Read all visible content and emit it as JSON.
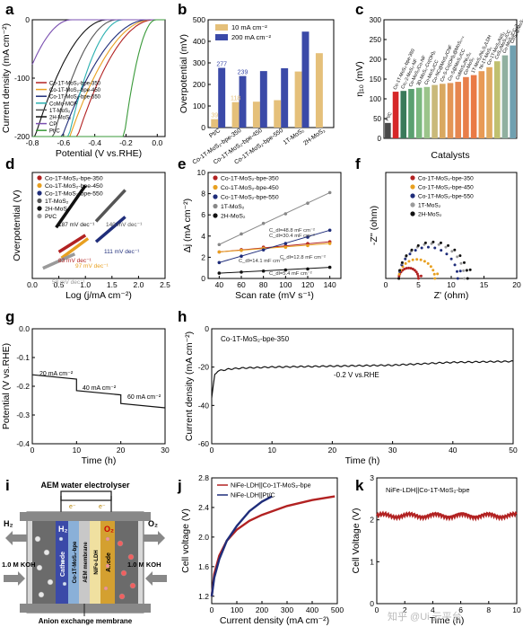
{
  "panels": {
    "a": {
      "letter": "a"
    },
    "b": {
      "letter": "b"
    },
    "c": {
      "letter": "c"
    },
    "d": {
      "letter": "d"
    },
    "e": {
      "letter": "e"
    },
    "f": {
      "letter": "f"
    },
    "g": {
      "letter": "g"
    },
    "h": {
      "letter": "h"
    },
    "i": {
      "letter": "i"
    },
    "j": {
      "letter": "j"
    },
    "k": {
      "letter": "k"
    }
  },
  "diagram_i": {
    "title": "AEM water electrolyser",
    "h2_left": "H₂",
    "h2_inner": "H₂",
    "o2_inner": "O₂",
    "o2_right": "O₂",
    "koh_left": "1.0 M KOH",
    "koh_right": "1.0 M KOH",
    "cathode": "Cathode",
    "cathode_material": "Co-1T-MoS₂-bpe",
    "membrane": "AEM membrane",
    "anode_material": "NiFe-LDH",
    "anode": "Anode",
    "bottom_label": "Anion exchange membrane",
    "electron": "e⁻"
  },
  "watermark": "知乎 @Ui 云平台",
  "chart_data": [
    {
      "panel": "a",
      "type": "line",
      "xlabel": "Potential (V vs.RHE)",
      "ylabel": "Current density (mA cm⁻²)",
      "xlim": [
        -0.8,
        0.05
      ],
      "ylim": [
        -200,
        0
      ],
      "xticks": [
        -0.8,
        -0.6,
        -0.4,
        -0.2,
        0.0
      ],
      "xtick_labels": [
        "-0.8",
        "-0.6",
        "-0.4",
        "-0.2",
        "0.0"
      ],
      "yticks": [
        -200,
        -100,
        0
      ],
      "ytick_labels": [
        "-200",
        "-100",
        "0"
      ],
      "series": [
        {
          "name": "Co-1T-MoS₂-bpe-350",
          "color": "#b22222",
          "onset": -0.02,
          "k": 0.085
        },
        {
          "name": "Co-1T-MoS₂-bpe-450",
          "color": "#e8a020",
          "onset": -0.04,
          "k": 0.09
        },
        {
          "name": "Co-1T-MoS₂-bpe-550",
          "color": "#1f2d7a",
          "onset": -0.06,
          "k": 0.095
        },
        {
          "name": "CoMo-MOF",
          "color": "#2ab0b0",
          "onset": -0.22,
          "k": 0.06
        },
        {
          "name": "1T-MoS₂",
          "color": "#555555",
          "onset": -0.26,
          "k": 0.07
        },
        {
          "name": "2H-MoS₂",
          "color": "#111111",
          "onset": -0.32,
          "k": 0.08
        },
        {
          "name": "CP",
          "color": "#7a4fb0",
          "onset": -0.55,
          "k": 0.07
        },
        {
          "name": "Pt/C",
          "color": "#3a9a3a",
          "onset": -0.01,
          "k": 0.035
        }
      ]
    },
    {
      "panel": "b",
      "type": "bar",
      "ylabel": "Overpotential (mV)",
      "ylim": [
        0,
        500
      ],
      "yticks": [
        0,
        100,
        200,
        300,
        400,
        500
      ],
      "categories": [
        "Pt/C",
        "Co-1T-MoS₂-bpe-350",
        "Co-1T-MoS₂-bpe-450",
        "Co-1T-MoS₂-bpe-550",
        "1T-MoS₂",
        "2H-MoS₂"
      ],
      "series": [
        {
          "name": "10 mA cm⁻²",
          "color": "#e5c07a",
          "values": [
            39,
            118,
            120,
            127,
            260,
            345
          ]
        },
        {
          "name": "200 mA cm⁻²",
          "color": "#3b4aa8",
          "values": [
            277,
            239,
            262,
            275,
            445,
            null
          ]
        }
      ],
      "data_labels": [
        {
          "text": "39",
          "series": 0,
          "index": 0
        },
        {
          "text": "277",
          "series": 1,
          "index": 0
        },
        {
          "text": "118",
          "series": 0,
          "index": 1
        },
        {
          "text": "239",
          "series": 1,
          "index": 1
        }
      ]
    },
    {
      "panel": "c",
      "type": "bar",
      "xlabel": "Catalysts",
      "ylabel": "η₁₀ (mV)",
      "ylim": [
        0,
        300
      ],
      "yticks": [
        0,
        50,
        100,
        150,
        200,
        250,
        300
      ],
      "categories": [
        "Pt/C",
        "Co-1T-MoS₂-bpe-350",
        "Co₁-2-MoS₂-NF",
        "Co-MoS₂/Co-NF",
        "3D-MoS₂-Co(OH)₂",
        "Co-MoS₂/CC",
        "Co-NC@MoS₂/CNF",
        "Co-S-Co(OH)₂@MoS₂₊ₓ",
        "Co-S@MoS₂/CC",
        "CoMoS₄/Ni₃S₂",
        "Co-MoS₂",
        "1T-MoS₂/Ni₃S₂/LDH",
        "Ni-1T-MoS₂",
        "Co-1T-MoS₂/NiS₂",
        "CoS₂/MoS₂/CC",
        "Co-MoS₂/CC-2",
        "CoS₂@MoS₂"
      ],
      "values": [
        39,
        118,
        120,
        125,
        128,
        130,
        135,
        138,
        140,
        143,
        155,
        160,
        170,
        180,
        195,
        210,
        235
      ],
      "colors": [
        "#4a4a4a",
        "#d62728",
        "#3a7a5a",
        "#5aa070",
        "#7ab87e",
        "#9bc48b",
        "#c9b97a",
        "#d9a860",
        "#e39556",
        "#e6864f",
        "#e87e4a",
        "#ea7a45",
        "#e89a55",
        "#e0aa60",
        "#c0c070",
        "#90b0a0",
        "#70a0b0"
      ]
    },
    {
      "panel": "d",
      "type": "line",
      "xlabel": "Log (j/mA cm⁻²)",
      "ylabel": "Overpotential (V)",
      "xlim": [
        0,
        2.5
      ],
      "xticks": [
        0.0,
        0.5,
        1.0,
        1.5,
        2.0,
        2.5
      ],
      "xtick_labels": [
        "0.0",
        "0.5",
        "1.0",
        "1.5",
        "2.0",
        "2.5"
      ],
      "series": [
        {
          "name": "Co-1T-MoS₂-bpe-350",
          "color": "#b22222",
          "x": [
            0.5,
            1.0
          ],
          "y": [
            0.045,
            0.086
          ]
        },
        {
          "name": "Co-1T-MoS₂-bpe-450",
          "color": "#e8a020",
          "x": [
            0.55,
            1.05
          ],
          "y": [
            0.03,
            0.078
          ]
        },
        {
          "name": "Co-1T-MoS₂-bpe-550",
          "color": "#1f2d7a",
          "x": [
            1.2,
            1.75
          ],
          "y": [
            0.07,
            0.131
          ]
        },
        {
          "name": "1T-MoS₂",
          "color": "#555555",
          "x": [
            1.2,
            1.75
          ],
          "y": [
            0.12,
            0.197
          ]
        },
        {
          "name": "2H-MoS₂",
          "color": "#111111",
          "x": [
            0.45,
            1.0
          ],
          "y": [
            0.105,
            0.208
          ]
        },
        {
          "name": "Pt/C",
          "color": "#9a9a9a",
          "x": [
            0.2,
            0.8
          ],
          "y": [
            0.005,
            0.04
          ]
        }
      ],
      "annotations": [
        "187 mV dec⁻¹",
        "140 mV dec⁻¹",
        "83 mV dec⁻¹",
        "111 mV dec⁻¹",
        "97 mV dec⁻¹",
        "58 mV dec⁻¹"
      ]
    },
    {
      "panel": "e",
      "type": "scatter",
      "xlabel": "Scan rate (mV s⁻¹)",
      "ylabel": "Δj (mA cm⁻²)",
      "xlim": [
        30,
        150
      ],
      "ylim": [
        0,
        10
      ],
      "xticks": [
        40,
        60,
        80,
        100,
        120,
        140
      ],
      "yticks": [
        0,
        2,
        4,
        6,
        8,
        10
      ],
      "series": [
        {
          "name": "Co-1T-MoS₂-bpe-350",
          "color": "#b22222",
          "x": [
            40,
            60,
            80,
            100,
            120,
            140
          ],
          "y": [
            2.5,
            2.72,
            2.95,
            3.07,
            3.29,
            3.46
          ]
        },
        {
          "name": "Co-1T-MoS₂-bpe-450",
          "color": "#e8a020",
          "x": [
            40,
            60,
            80,
            100,
            120,
            140
          ],
          "y": [
            2.5,
            2.65,
            2.85,
            2.95,
            3.1,
            3.3
          ]
        },
        {
          "name": "Co-1T-MoS₂-bpe-550",
          "color": "#1f2d7a",
          "x": [
            40,
            60,
            80,
            100,
            120,
            140
          ],
          "y": [
            1.5,
            2.1,
            2.7,
            3.3,
            3.9,
            4.55
          ]
        },
        {
          "name": "1T-MoS₂",
          "color": "#888888",
          "x": [
            40,
            60,
            80,
            100,
            120,
            140
          ],
          "y": [
            3.2,
            4.2,
            5.2,
            6.1,
            7.1,
            8.1
          ]
        },
        {
          "name": "2H-MoS₂",
          "color": "#111111",
          "x": [
            40,
            60,
            80,
            100,
            120,
            140
          ],
          "y": [
            0.5,
            0.6,
            0.7,
            0.8,
            0.9,
            1.05
          ]
        }
      ],
      "annotations": [
        "C_dl=48.8 mF cm⁻²",
        "C_dl=30.4 mF cm⁻²",
        "C_dl=14.1 mF cm⁻²",
        "C_dl=12.8 mF cm⁻²",
        "C_dl=5.4 mF cm⁻²"
      ]
    },
    {
      "panel": "f",
      "type": "scatter",
      "xlabel": "Z' (ohm)",
      "ylabel": "-Z'' (ohm)",
      "xlim": [
        0,
        20
      ],
      "ylim": [
        0,
        16
      ],
      "xticks": [
        0,
        5,
        10,
        15,
        20
      ],
      "series": [
        {
          "name": "Co-1T-MoS₂-bpe-350",
          "color": "#b22222",
          "start": 2.0,
          "end": 5.0
        },
        {
          "name": "Co-1T-MoS₂-bpe-450",
          "color": "#e8a020",
          "start": 2.0,
          "end": 7.5
        },
        {
          "name": "Co-1T-MoS₂-bpe-550",
          "color": "#1f2d7a",
          "start": 2.0,
          "end": 11.0
        },
        {
          "name": "1T-MoS₂",
          "color": "#9a9a9a",
          "start": 2.0,
          "end": 12.0
        },
        {
          "name": "2H-MoS₂",
          "color": "#111111",
          "start": 2.0,
          "end": 12.5
        }
      ]
    },
    {
      "panel": "g",
      "type": "line",
      "xlabel": "Time (h)",
      "ylabel": "Potential (V vs.RHE)",
      "xlim": [
        0,
        30
      ],
      "ylim": [
        -0.4,
        0.0
      ],
      "xticks": [
        0,
        10,
        20,
        30
      ],
      "yticks": [
        -0.4,
        -0.3,
        -0.2,
        -0.1,
        0.0
      ],
      "ytick_labels": [
        "-0.4",
        "-0.3",
        "-0.2",
        "-0.1",
        "0.0"
      ],
      "x": [
        0,
        10,
        10,
        20,
        20,
        30
      ],
      "y": [
        -0.16,
        -0.175,
        -0.215,
        -0.23,
        -0.26,
        -0.275
      ],
      "annotations": [
        "20 mA cm⁻²",
        "40 mA cm⁻²",
        "60 mA cm⁻²"
      ]
    },
    {
      "panel": "h",
      "type": "line",
      "title": "Co-1T-MoS₂-bpe-350",
      "xlabel": "Time (h)",
      "ylabel": "Current density (mA cm⁻²)",
      "xlim": [
        0,
        50
      ],
      "ylim": [
        -60,
        0
      ],
      "xticks": [
        0,
        10,
        20,
        30,
        40,
        50
      ],
      "yticks": [
        -60,
        -40,
        -20,
        0
      ],
      "x": [
        0,
        0.5,
        1,
        3,
        5,
        10,
        20,
        30,
        40,
        50
      ],
      "y": [
        -36,
        -24,
        -22,
        -21,
        -20.5,
        -20,
        -19.5,
        -19,
        -17.5,
        -17
      ],
      "annotations": [
        "-0.2 V vs.RHE"
      ]
    },
    {
      "panel": "j",
      "type": "line",
      "xlabel": "Current density (mA cm⁻²)",
      "ylabel": "Cell voltage (V)",
      "xlim": [
        0,
        500
      ],
      "ylim": [
        1.1,
        2.8
      ],
      "xticks": [
        0,
        100,
        200,
        300,
        400,
        500
      ],
      "yticks": [
        1.2,
        1.6,
        2.0,
        2.4,
        2.8
      ],
      "ytick_labels": [
        "1.2",
        "1.6",
        "2.0",
        "2.4",
        "2.8"
      ],
      "series": [
        {
          "name": "NiFe-LDH||Co-1T-MoS₂-bpe",
          "color": "#b22222",
          "x": [
            0,
            10,
            30,
            60,
            100,
            150,
            200,
            300,
            400,
            490
          ],
          "y": [
            1.2,
            1.5,
            1.75,
            1.95,
            2.1,
            2.22,
            2.3,
            2.42,
            2.5,
            2.55
          ]
        },
        {
          "name": "NiFe-LDH||Pt/C",
          "color": "#1f2d7a",
          "x": [
            0,
            10,
            30,
            60,
            100,
            150,
            200,
            240
          ],
          "y": [
            1.2,
            1.45,
            1.7,
            1.95,
            2.15,
            2.35,
            2.48,
            2.55
          ]
        }
      ]
    },
    {
      "panel": "k",
      "type": "line",
      "title": "NiFe-LDH||Co-1T-MoS₂-bpe",
      "xlabel": "Time (h)",
      "ylabel": "Cell Voltage (V)",
      "xlim": [
        0,
        10
      ],
      "ylim": [
        0,
        3
      ],
      "xticks": [
        0,
        2,
        4,
        6,
        8,
        10
      ],
      "yticks": [
        0,
        1,
        2,
        3
      ],
      "level": 2.1
    }
  ]
}
